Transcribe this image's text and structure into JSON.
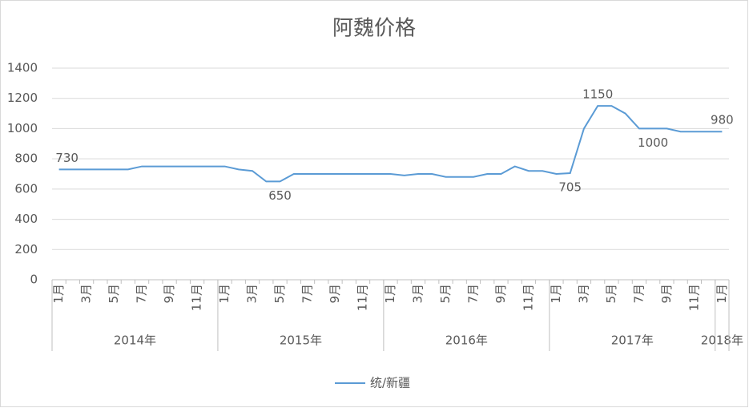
{
  "chart_data": {
    "type": "line",
    "title": "阿魏价格",
    "categories": [
      "1月",
      null,
      "3月",
      null,
      "5月",
      null,
      "7月",
      null,
      "9月",
      null,
      "11月",
      null,
      "1月",
      null,
      "3月",
      null,
      "5月",
      null,
      "7月",
      null,
      "9月",
      null,
      "11月",
      null,
      "1月",
      null,
      "3月",
      null,
      "5月",
      null,
      "7月",
      null,
      "9月",
      null,
      "11月",
      null,
      "1月",
      null,
      "3月",
      null,
      "5月",
      null,
      "7月",
      null,
      "9月",
      null,
      "11月",
      null,
      "1月"
    ],
    "x_groups": [
      "2014年",
      "2015年",
      "2016年",
      "2017年",
      "2018年"
    ],
    "series": [
      {
        "name": "统/新疆",
        "color": "#5b9bd5",
        "values": [
          730,
          730,
          730,
          730,
          730,
          730,
          750,
          750,
          750,
          750,
          750,
          750,
          750,
          730,
          720,
          650,
          650,
          700,
          700,
          700,
          700,
          700,
          700,
          700,
          700,
          690,
          700,
          700,
          680,
          680,
          680,
          700,
          700,
          750,
          720,
          720,
          700,
          705,
          1000,
          1150,
          1150,
          1100,
          1000,
          1000,
          1000,
          980,
          980,
          980,
          980
        ],
        "value_labels": [
          "730",
          null,
          null,
          null,
          null,
          null,
          null,
          null,
          null,
          null,
          null,
          null,
          null,
          null,
          null,
          null,
          "650",
          null,
          null,
          null,
          null,
          null,
          null,
          null,
          null,
          null,
          null,
          null,
          null,
          null,
          null,
          null,
          null,
          null,
          null,
          null,
          null,
          "705",
          null,
          "1150",
          null,
          null,
          null,
          "1000",
          null,
          null,
          null,
          null,
          "980"
        ]
      }
    ],
    "ylim": [
      0,
      1400
    ],
    "yticks": [
      0,
      200,
      400,
      600,
      800,
      1000,
      1200,
      1400
    ],
    "grid": true,
    "legend": "bottom"
  }
}
